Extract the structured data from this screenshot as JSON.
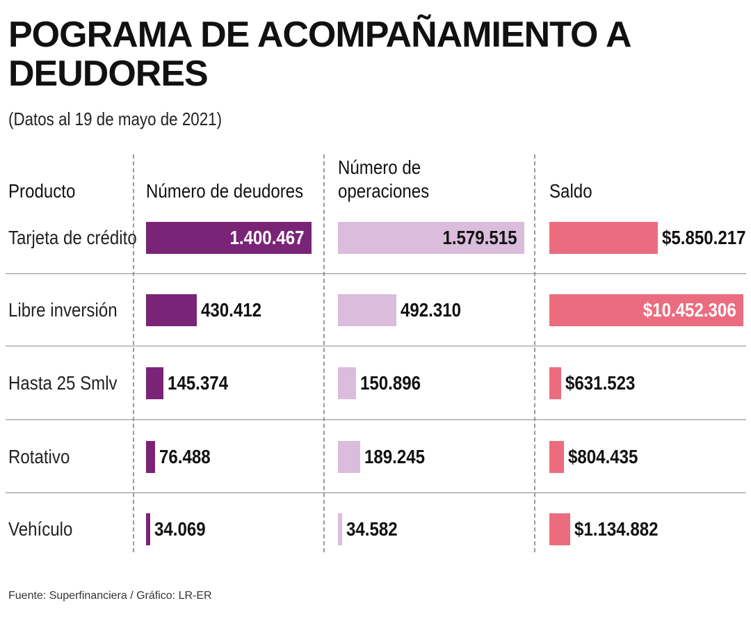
{
  "chart_data": {
    "type": "table",
    "title": "POGRAMA DE ACOMPAÑAMIENTO A DEUDORES",
    "subtitle": "(Datos al 19 de mayo de 2021)",
    "headers": {
      "producto": "Producto",
      "deudores": "Número de deudores",
      "operaciones": "Número de operaciones",
      "saldo": "Saldo"
    },
    "rows": [
      {
        "producto": "Tarjeta de crédito",
        "deudores": 1400467,
        "deudores_label": "1.400.467",
        "operaciones": 1579515,
        "operaciones_label": "1.579.515",
        "saldo": 5850217,
        "saldo_label": "$5.850.217"
      },
      {
        "producto": "Libre inversión",
        "deudores": 430412,
        "deudores_label": "430.412",
        "operaciones": 492310,
        "operaciones_label": "492.310",
        "saldo": 10452306,
        "saldo_label": "$10.452.306"
      },
      {
        "producto": "Hasta 25 Smlv",
        "deudores": 145374,
        "deudores_label": "145.374",
        "operaciones": 150896,
        "operaciones_label": "150.896",
        "saldo": 631523,
        "saldo_label": "$631.523"
      },
      {
        "producto": "Rotativo",
        "deudores": 76488,
        "deudores_label": "76.488",
        "operaciones": 189245,
        "operaciones_label": "189.245",
        "saldo": 804435,
        "saldo_label": "$804.435"
      },
      {
        "producto": "Vehículo",
        "deudores": 34069,
        "deudores_label": "34.069",
        "operaciones": 34582,
        "operaciones_label": "34.582",
        "saldo": 1134882,
        "saldo_label": "$1.134.882"
      }
    ],
    "source": "Fuente: Superfinanciera / Gráfico: LR-ER",
    "colors": {
      "deudores": "#7a2478",
      "operaciones": "#dbbcdd",
      "saldo": "#ec6c7f"
    }
  }
}
